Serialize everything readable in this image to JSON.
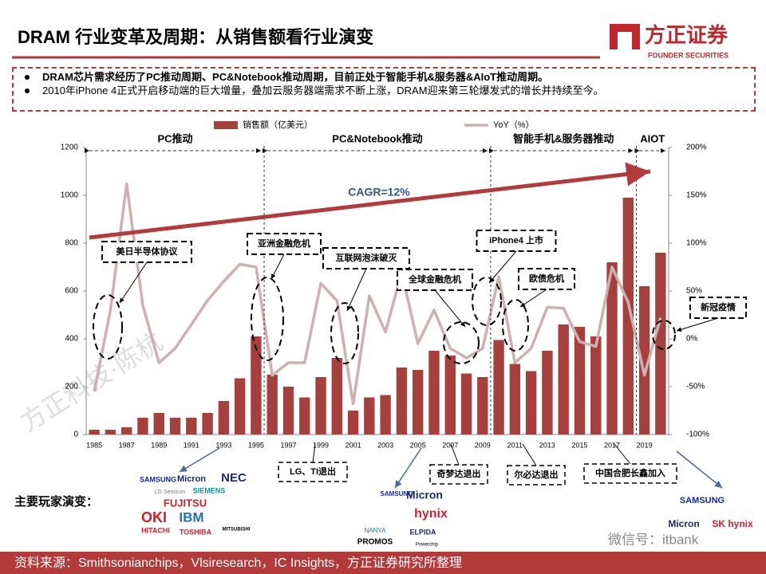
{
  "header": {
    "title": "DRAM 行业变革及周期：从销售额看行业演变",
    "logo": "方正证券",
    "logo_en": "FOUNDER SECURITIES"
  },
  "bullets": [
    "DRAM芯片需求经历了PC推动周期、PC&Notebook推动周期，目前正处于智能手机&服务器&AIoT推动周期。",
    "2010年iPhone 4正式开启移动端的巨大增量，叠加云服务器端需求不断上涨，DRAM迎来第三轮爆发式的增长并持续至今。"
  ],
  "chart_data": {
    "type": "bar",
    "categories": [
      "1985",
      null,
      "1987",
      null,
      "1989",
      null,
      "1991",
      null,
      "1993",
      null,
      "1995",
      null,
      "1997",
      null,
      "1999",
      null,
      "2001",
      null,
      "2003",
      null,
      "2005",
      null,
      "2007",
      null,
      "2009",
      null,
      "2011",
      null,
      "2013",
      null,
      "2015",
      null,
      "2017",
      null,
      "2019",
      null
    ],
    "series": [
      {
        "name": "销售额（亿美元）",
        "color": "#a5403d",
        "values": [
          20,
          20,
          30,
          70,
          90,
          70,
          70,
          90,
          140,
          235,
          410,
          250,
          200,
          155,
          240,
          320,
          100,
          155,
          165,
          280,
          270,
          350,
          330,
          255,
          240,
          395,
          295,
          265,
          350,
          460,
          450,
          410,
          720,
          990,
          620,
          760
        ]
      },
      {
        "name": "YoY（%）",
        "type": "line",
        "axis": "y2",
        "color": "#cdb0af",
        "values": [
          -55,
          30,
          162,
          35,
          -25,
          -10,
          15,
          40,
          60,
          78,
          75,
          -38,
          -25,
          -25,
          58,
          40,
          -68,
          45,
          7,
          70,
          -5,
          30,
          -10,
          -20,
          -10,
          65,
          -25,
          -10,
          33,
          32,
          -3,
          -8,
          75,
          38,
          -38,
          22
        ]
      }
    ],
    "ylim": [
      0,
      1200
    ],
    "yticks": [
      0,
      200,
      400,
      600,
      800,
      1000,
      1200
    ],
    "y2lim": [
      -100,
      200
    ],
    "y2ticks": [
      {
        "value": -100,
        "label": "-100%"
      },
      {
        "value": -50,
        "label": "-50%"
      },
      {
        "value": 0,
        "label": "0%"
      },
      {
        "value": 50,
        "label": "50%"
      },
      {
        "value": 100,
        "label": "100%"
      },
      {
        "value": 150,
        "label": "150%"
      },
      {
        "value": 200,
        "label": "200%"
      }
    ],
    "phases": [
      "PC推动",
      "PC&Notebook推动",
      "智能手机&服务器推动",
      "AIOT"
    ],
    "trend_label": "CAGR=12%"
  },
  "events": [
    "美日半导体协议",
    "亚洲金融危机",
    "互联网泡沫破灭",
    "全球金融危机",
    "iPhone4 上市",
    "欧债危机",
    "新冠疫情"
  ],
  "exits": [
    "LG、TI退出",
    "奇梦达退出",
    "尔必达退出",
    "中国合肥长鑫加入"
  ],
  "players_label": "主要玩家演变：",
  "players": [
    [
      "SAMSUNG",
      "Micron",
      "NEC",
      "LG Semicon",
      "SIEMENS",
      "FUJITSU",
      "OKI",
      "IBM",
      "HITACHI",
      "TOSHIBA",
      "MITSUBISHI"
    ],
    [
      "SAMSUNG",
      "Micron",
      "hynix",
      "NANYA",
      "ELPIDA",
      "PROMOS",
      "Powerchip"
    ],
    [
      "SAMSUNG",
      "Micron",
      "SK hynix"
    ]
  ],
  "watermark": "方正科技·陈杭",
  "wechat": "微信号：itbank",
  "footer": "资料来源：Smithsonianchips，Vlsiresearch，IC Insights，方正证券研究所整理"
}
